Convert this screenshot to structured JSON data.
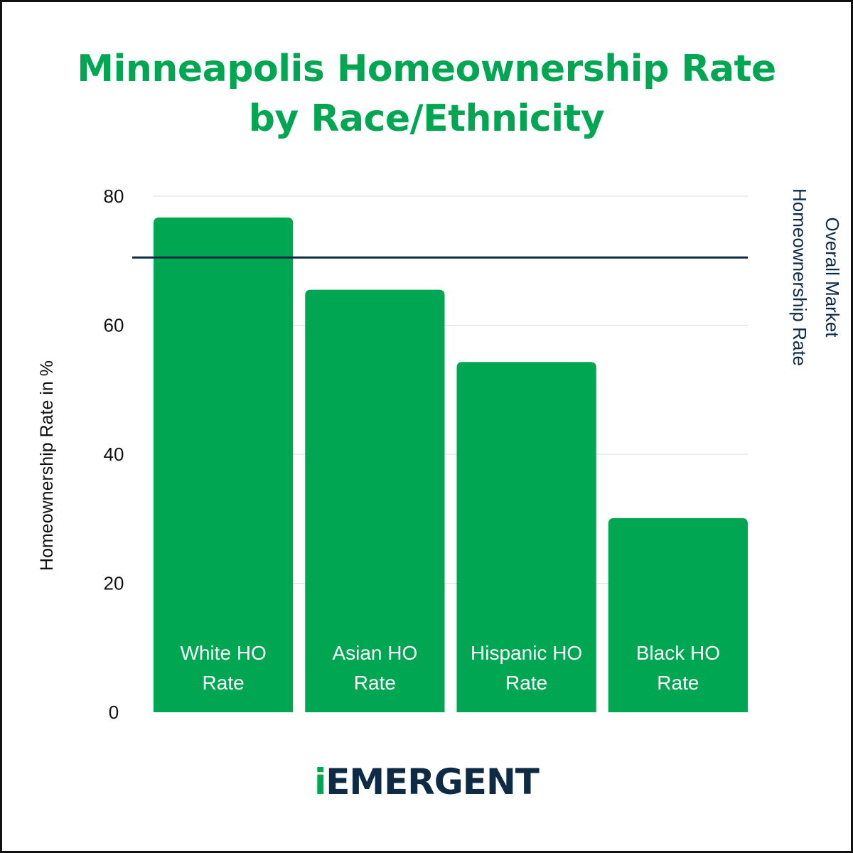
{
  "colors": {
    "title": "#00a651",
    "bar": "#00a651",
    "reference_line": "#0d2b45",
    "gridline": "#dddddd",
    "logo_i": "#00a651",
    "logo_rest": "#0d2b45"
  },
  "logo": {
    "i": "i",
    "rest": "EMERGENT"
  },
  "chart_data": {
    "type": "bar",
    "title": "Minneapolis Homeownership Rate by Race/Ethnicity",
    "categories": [
      "White HO Rate",
      "Asian HO Rate",
      "Hispanic HO Rate",
      "Black HO Rate"
    ],
    "category_lines": [
      [
        "White HO",
        "Rate"
      ],
      [
        "Asian HO",
        "Rate"
      ],
      [
        "Hispanic HO",
        "Rate"
      ],
      [
        "Black HO",
        "Rate"
      ]
    ],
    "values": [
      76.7,
      65.5,
      54.3,
      30.1
    ],
    "xlabel": "",
    "ylabel": "Homeownership Rate in %",
    "ylim": [
      0,
      80
    ],
    "yticks": [
      0,
      20,
      40,
      60,
      80
    ],
    "grid": true,
    "reference_line": {
      "value": 70.5,
      "label_lines": [
        "Overall Market",
        "Homeownership Rate"
      ]
    }
  }
}
